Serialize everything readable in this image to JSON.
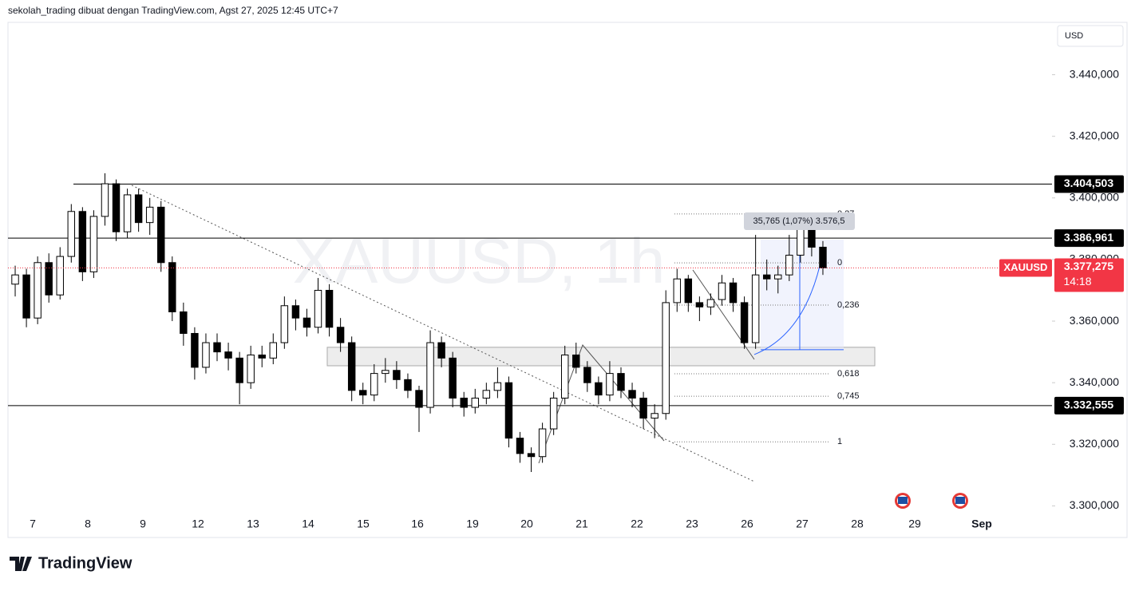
{
  "header": "sekolah_trading dibuat dengan TradingView.com, Agst 27, 2025 12:45 UTC+7",
  "currency": "USD",
  "logo": "TradingView",
  "chart_data": {
    "type": "candlestick",
    "watermark": "XAUUSD, 1h",
    "symbol": "XAUUSD",
    "ylim": [
      3297,
      3457
    ],
    "yticks": [
      {
        "value": 3300,
        "label": "3.300,000"
      },
      {
        "value": 3320,
        "label": "3.320,000"
      },
      {
        "value": 3340,
        "label": "3.340,000"
      },
      {
        "value": 3360,
        "label": "3.360,000"
      },
      {
        "value": 3380,
        "label": "3.380,000"
      },
      {
        "value": 3400,
        "label": "3.400,000"
      },
      {
        "value": 3420,
        "label": "3.420,000"
      },
      {
        "value": 3440,
        "label": "3.440,000"
      }
    ],
    "xlabels": [
      "7",
      "8",
      "9",
      "12",
      "13",
      "14",
      "15",
      "16",
      "19",
      "20",
      "21",
      "22",
      "23",
      "26",
      "27",
      "28",
      "29",
      "Sep"
    ],
    "candles": [
      [
        3372,
        3378,
        3368,
        3375
      ],
      [
        3375,
        3377,
        3358,
        3361
      ],
      [
        3361,
        3381,
        3359,
        3379
      ],
      [
        3379,
        3382,
        3366,
        3368.5
      ],
      [
        3368.5,
        3384,
        3367,
        3381
      ],
      [
        3381,
        3398,
        3379,
        3395.6
      ],
      [
        3395.6,
        3397,
        3373,
        3376
      ],
      [
        3376,
        3396,
        3374,
        3394
      ],
      [
        3394,
        3408,
        3391,
        3404.6
      ],
      [
        3404.6,
        3406,
        3386,
        3389
      ],
      [
        3389,
        3403,
        3387,
        3401
      ],
      [
        3401,
        3403,
        3389,
        3392
      ],
      [
        3392,
        3400,
        3388,
        3397
      ],
      [
        3397,
        3399,
        3376,
        3379
      ],
      [
        3379,
        3381,
        3360,
        3363
      ],
      [
        3363,
        3366,
        3352,
        3356
      ],
      [
        3356,
        3358,
        3341,
        3345
      ],
      [
        3345,
        3356,
        3343,
        3353
      ],
      [
        3353,
        3356,
        3347,
        3350
      ],
      [
        3350,
        3353,
        3344,
        3348
      ],
      [
        3348,
        3350,
        3333,
        3340
      ],
      [
        3340,
        3352,
        3338,
        3349
      ],
      [
        3349,
        3352,
        3345,
        3348
      ],
      [
        3348,
        3356,
        3346,
        3353
      ],
      [
        3353,
        3368,
        3351,
        3365
      ],
      [
        3365,
        3367,
        3357,
        3361
      ],
      [
        3361,
        3364,
        3355,
        3358
      ],
      [
        3358,
        3374,
        3356,
        3370
      ],
      [
        3370,
        3372,
        3355,
        3358
      ],
      [
        3358,
        3361,
        3350,
        3353
      ],
      [
        3353,
        3355,
        3334,
        3337.5
      ],
      [
        3337.5,
        3340,
        3333,
        3336
      ],
      [
        3336,
        3346,
        3334,
        3343
      ],
      [
        3343,
        3348,
        3340,
        3344
      ],
      [
        3344,
        3347,
        3338,
        3341
      ],
      [
        3341,
        3343,
        3335,
        3337.5
      ],
      [
        3337.5,
        3339,
        3324,
        3332
      ],
      [
        3332,
        3357,
        3330,
        3353
      ],
      [
        3353,
        3355,
        3345,
        3348
      ],
      [
        3348,
        3350,
        3332,
        3335
      ],
      [
        3335,
        3337,
        3329,
        3332
      ],
      [
        3332,
        3338,
        3330,
        3335
      ],
      [
        3335,
        3340,
        3333,
        3337.5
      ],
      [
        3337.5,
        3345,
        3335,
        3340
      ],
      [
        3340,
        3342,
        3319,
        3322
      ],
      [
        3322,
        3324,
        3314,
        3317
      ],
      [
        3317,
        3319,
        3311,
        3316
      ],
      [
        3316,
        3327,
        3314,
        3325
      ],
      [
        3325,
        3337,
        3323,
        3335
      ],
      [
        3335,
        3352,
        3333,
        3349
      ],
      [
        3349,
        3353,
        3343,
        3345
      ],
      [
        3345,
        3347,
        3337,
        3340
      ],
      [
        3340,
        3342,
        3333,
        3336
      ],
      [
        3336,
        3347,
        3334,
        3343
      ],
      [
        3343,
        3345,
        3335,
        3337.5
      ],
      [
        3337.5,
        3340,
        3332,
        3335
      ],
      [
        3335,
        3337,
        3325,
        3328.5
      ],
      [
        3328.5,
        3333,
        3322,
        3330
      ],
      [
        3330,
        3370,
        3328,
        3366
      ],
      [
        3366,
        3377,
        3363,
        3373.7
      ],
      [
        3373.7,
        3375,
        3363,
        3366
      ],
      [
        3366,
        3368,
        3360,
        3364.6
      ],
      [
        3364.6,
        3369,
        3362,
        3367
      ],
      [
        3367,
        3375,
        3365,
        3372.4
      ],
      [
        3372.4,
        3374,
        3363,
        3366
      ],
      [
        3366,
        3368,
        3351,
        3353
      ],
      [
        3353,
        3388,
        3351,
        3375
      ],
      [
        3375,
        3380,
        3370,
        3373.7
      ],
      [
        3373.7,
        3378,
        3369,
        3375
      ],
      [
        3375,
        3388,
        3373,
        3381.4
      ],
      [
        3381.4,
        3393,
        3379,
        3390.5
      ],
      [
        3390.5,
        3392,
        3381,
        3384
      ],
      [
        3384,
        3386,
        3375,
        3377.275
      ]
    ],
    "levels": [
      {
        "value": 3404.503,
        "label": "3.404,503"
      },
      {
        "value": 3386.961,
        "label": "3.386,961"
      },
      {
        "value": 3332.555,
        "label": "3.332,555"
      }
    ],
    "last_price": {
      "value": 3377.275,
      "label": "3.377,275"
    },
    "countdown": "14:18",
    "zone": {
      "top": 3351.5,
      "bottom": 3345.5
    },
    "fib_levels": [
      {
        "label": "0,27",
        "value": 3394.8
      },
      {
        "label": "0",
        "value": 3378.9
      },
      {
        "label": "0,236",
        "value": 3365.2
      },
      {
        "label": "0,618",
        "value": 3342.9
      },
      {
        "label": "0,745",
        "value": 3335.6
      },
      {
        "label": "1",
        "value": 3320.8
      }
    ],
    "measure": {
      "label": "35,765 (1,07%) 3.576,5",
      "from": 3350.7,
      "to": 3386.5
    }
  }
}
